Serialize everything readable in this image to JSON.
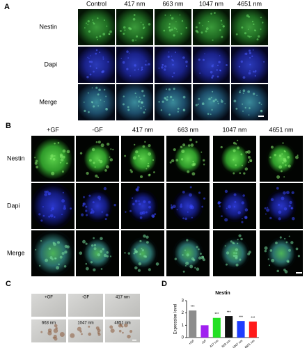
{
  "panel_a": {
    "label": "A",
    "columns": [
      "Control",
      "417 nm",
      "663 nm",
      "1047 nm",
      "4651 nm"
    ],
    "rows": [
      "Nestin",
      "Dapi",
      "Merge"
    ]
  },
  "panel_b": {
    "label": "B",
    "columns": [
      "+GF",
      "-GF",
      "417 nm",
      "663 nm",
      "1047 nm",
      "4651 nm"
    ],
    "rows": [
      "Nestin",
      "Dapi",
      "Merge"
    ]
  },
  "panel_c": {
    "label": "C",
    "captions": [
      "+GF",
      "-GF",
      "417 nm",
      "663 nm",
      "1047 nm",
      "4651 nm"
    ]
  },
  "panel_d": {
    "label": "D"
  },
  "chart_data": {
    "type": "bar",
    "title": "Nestin",
    "y_label": "Expression level",
    "categories": [
      "+GF",
      "-GF",
      "417 nm",
      "663 nm",
      "1047 nm",
      "4651 nm"
    ],
    "values": [
      2.2,
      1.0,
      1.6,
      1.75,
      1.35,
      1.3
    ],
    "significance": [
      "***",
      null,
      "***",
      "***",
      "***",
      "***"
    ],
    "colors": [
      "#8c8c8c",
      "#a020f0",
      "#22e022",
      "#111111",
      "#1e3cff",
      "#ff1a1a"
    ],
    "ylim": [
      0,
      3
    ],
    "yticks": [
      0,
      1,
      2,
      3
    ]
  }
}
